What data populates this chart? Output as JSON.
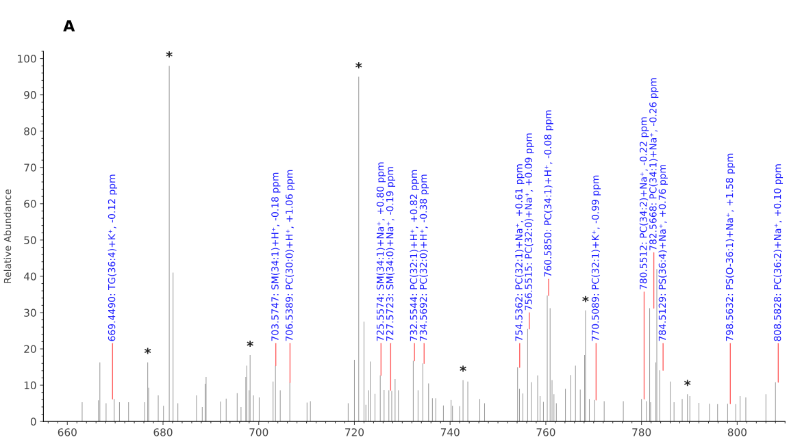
{
  "chart_data": {
    "type": "bar",
    "title": "A",
    "ylabel": "Relative Abundance",
    "x": [
      663.1,
      666.5,
      666.8,
      668.1,
      669.8,
      670.9,
      672.8,
      676.2,
      676.8,
      677.0,
      679.0,
      680.1,
      681.3,
      682.1,
      683.1,
      687.0,
      688.2,
      688.8,
      689.0,
      692.0,
      693.2,
      695.5,
      696.3,
      697.3,
      697.5,
      698.0,
      698.2,
      698.9,
      700.1,
      703.0,
      703.5,
      704.5,
      706.5,
      710.1,
      710.8,
      718.7,
      720.0,
      720.9,
      722.0,
      722.4,
      723.0,
      723.3,
      724.3,
      725.4,
      726.2,
      727.2,
      727.8,
      728.5,
      729.2,
      732.3,
      733.3,
      734.3,
      735.5,
      736.3,
      737.0,
      738.6,
      740.2,
      740.5,
      742.0,
      742.7,
      743.7,
      746.2,
      747.2,
      754.1,
      754.5,
      755.2,
      756.2,
      757.0,
      758.3,
      758.8,
      759.5,
      760.3,
      760.9,
      761.3,
      761.7,
      762.2,
      764.1,
      765.2,
      766.2,
      767.2,
      768.1,
      768.3,
      769.1,
      770.2,
      772.2,
      776.2,
      780.0,
      781.0,
      781.7,
      781.9,
      783.0,
      783.2,
      783.8,
      786.0,
      786.8,
      788.5,
      789.6,
      790.1,
      792.0,
      794.2,
      795.9,
      798.0,
      799.7,
      800.6,
      801.8,
      806.0,
      808.0
    ],
    "values": [
      5.3,
      5.8,
      16.3,
      5.0,
      6.2,
      5.3,
      5.3,
      5.3,
      16.3,
      9.3,
      7.2,
      4.3,
      98,
      41,
      5.0,
      7.2,
      4.0,
      10.4,
      12.3,
      5.5,
      6.3,
      7.8,
      4.0,
      12.3,
      15.4,
      8.6,
      18.3,
      7.2,
      6.6,
      11,
      15.4,
      8.6,
      10.7,
      5.2,
      5.6,
      5.0,
      17,
      95,
      27.5,
      4.6,
      8.6,
      16.5,
      7.6,
      12.7,
      8.7,
      8.6,
      8.4,
      11.7,
      8.6,
      16.7,
      8.6,
      16,
      10.5,
      6.4,
      6.4,
      4.4,
      5.9,
      4.3,
      4.2,
      11.4,
      11,
      6.2,
      5.0,
      14.9,
      9,
      7.7,
      25.5,
      10.8,
      12.7,
      7,
      5.4,
      34.7,
      31.2,
      11.4,
      7.5,
      5,
      9,
      12.8,
      15.4,
      8.8,
      18.3,
      30.6,
      6.2,
      5.9,
      5.6,
      5.6,
      6.2,
      5.6,
      31.2,
      5.3,
      16.3,
      42,
      14.1,
      11,
      5.3,
      6.2,
      7.5,
      7,
      5.1,
      4.9,
      4.8,
      4.9,
      4.8,
      7,
      6.6,
      7.5,
      10.8
    ],
    "color": "#9a9a9a",
    "xlim": [
      655,
      810
    ],
    "xticks": [
      660,
      680,
      700,
      720,
      740,
      760,
      780,
      800
    ],
    "ylim": [
      0,
      102
    ],
    "yticks": [
      0,
      10,
      20,
      30,
      40,
      50,
      60,
      70,
      80,
      90,
      100
    ],
    "annotations": [
      {
        "text": "669.4490: TG(36:4)+K⁺, -0.12 ppm",
        "x": 669.45,
        "y": 6.2
      },
      {
        "text": "703.5747: SM(34:1)+H⁺, -0.18 ppm",
        "x": 703.57,
        "y": 15.4
      },
      {
        "text": "706.5389: PC(30:0)+H⁺, +1.06 ppm",
        "x": 706.54,
        "y": 10.7
      },
      {
        "text": "725.5574: SM(34:1)+Na⁺, +0.80 ppm",
        "x": 725.56,
        "y": 12.7
      },
      {
        "text": "727.5723: SM(34:0)+Na⁺, -0.19 ppm",
        "x": 727.57,
        "y": 8.6
      },
      {
        "text": "732.5544: PC(32:1)+H⁺, +0.82 ppm",
        "x": 732.55,
        "y": 16.7
      },
      {
        "text": "734.5692: PC(32:0)+H⁺, -0.38 ppm",
        "x": 734.57,
        "y": 16
      },
      {
        "text": "754.5362: PC(32:1)+Na⁺, +0.61 ppm",
        "x": 754.54,
        "y": 14.9
      },
      {
        "text": "756.5515: PC(32:0)+Na⁺, +0.09 ppm",
        "x": 756.55,
        "y": 25.5
      },
      {
        "text": "760.5850: PC(34:1)+H⁺, -0.08 ppm",
        "x": 760.59,
        "y": 34.7
      },
      {
        "text": "770.5089: PC(32:1)+K⁺, -0.99 ppm",
        "x": 770.51,
        "y": 5.9
      },
      {
        "text": "780.5512: PC(34:2)+Na⁺, -0.22 ppm",
        "x": 780.55,
        "y": 6.2
      },
      {
        "text": "782.5668: PC(34:1)+Na⁺, -0.26 ppm",
        "x": 782.57,
        "y": 31.2
      },
      {
        "text": "784.5129: PS(36:4)+Na⁺, +0.76 ppm",
        "x": 784.51,
        "y": 14.1
      },
      {
        "text": "798.5632: PS(O-36:1)+Na⁺, +1.58 ppm",
        "x": 798.56,
        "y": 4.9
      },
      {
        "text": "808.5828: PC(36:2)+Na⁺, +0.10 ppm",
        "x": 808.58,
        "y": 10.8
      },
      {
        "text": "*",
        "x": 676.8,
        "y": 16.3
      },
      {
        "text": "*",
        "x": 681.3,
        "y": 98
      },
      {
        "text": "*",
        "x": 698.2,
        "y": 18.3
      },
      {
        "text": "*",
        "x": 720.9,
        "y": 95
      },
      {
        "text": "*",
        "x": 742.7,
        "y": 11.4
      },
      {
        "text": "*",
        "x": 768.3,
        "y": 30.6
      },
      {
        "text": "*",
        "x": 789.6,
        "y": 7.5
      }
    ]
  }
}
